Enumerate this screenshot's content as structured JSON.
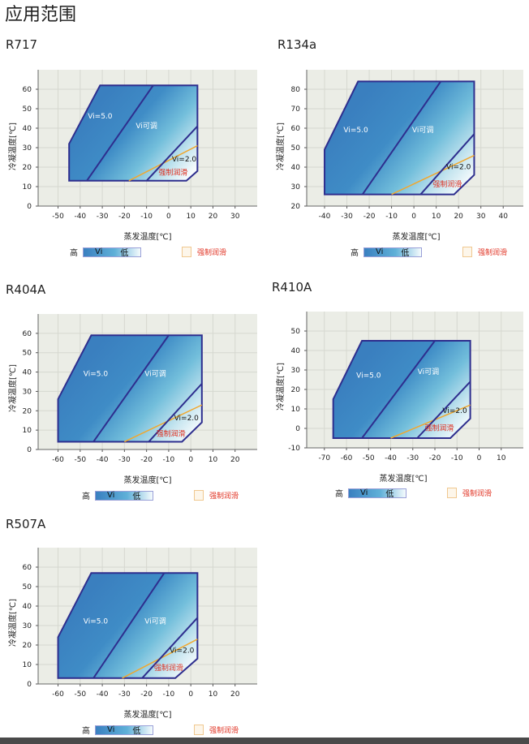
{
  "page_title": "应用范围",
  "legend": {
    "high": "高",
    "vi": "Vi",
    "low": "低",
    "lubrication": "强制润滑"
  },
  "colors": {
    "envelope_outline": "#2e2e8e",
    "gradient_dark": "#3a80c0",
    "gradient_light": "#f5fbfd",
    "lubrication_line": "#f0a830",
    "lubrication_text": "#e03020",
    "plot_background": "#ebede6"
  },
  "chart_data": [
    {
      "type": "area",
      "title": "R717",
      "xlabel": "蒸发温度[℃]",
      "ylabel": "冷凝温度[℃]",
      "xlim": [
        -59,
        40
      ],
      "ylim": [
        0,
        70
      ],
      "grid": true,
      "xticks": [
        -50,
        -40,
        -30,
        -20,
        -10,
        0,
        10,
        20,
        30
      ],
      "yticks": [
        0,
        10,
        20,
        30,
        40,
        50,
        60
      ],
      "envelope": [
        [
          -45,
          13
        ],
        [
          -45,
          32
        ],
        [
          -31,
          62
        ],
        [
          13,
          62
        ],
        [
          13,
          18
        ],
        [
          8,
          13
        ]
      ],
      "vi5_boundary": [
        [
          -37,
          13
        ],
        [
          -7,
          62
        ]
      ],
      "vi2_boundary": [
        [
          -10,
          13
        ],
        [
          13,
          41
        ]
      ],
      "lubrication_line": [
        [
          -18,
          13
        ],
        [
          13,
          31
        ]
      ],
      "region_labels": [
        "Vi=5.0",
        "Vi可调",
        "Vi=2.0",
        "强制润滑"
      ]
    },
    {
      "type": "area",
      "title": "R134a",
      "xlabel": "蒸发温度[℃]",
      "ylabel": "冷凝温度[℃]",
      "xlim": [
        -48,
        49
      ],
      "ylim": [
        20,
        90
      ],
      "grid": true,
      "xticks": [
        -40,
        -30,
        -20,
        -10,
        0,
        10,
        20,
        30,
        40
      ],
      "yticks": [
        20,
        30,
        40,
        50,
        60,
        70,
        80
      ],
      "envelope": [
        [
          -40,
          26
        ],
        [
          -40,
          49
        ],
        [
          -25,
          84
        ],
        [
          27,
          84
        ],
        [
          27,
          36
        ],
        [
          18,
          26
        ]
      ],
      "vi5_boundary": [
        [
          -23,
          26
        ],
        [
          12,
          84
        ]
      ],
      "vi2_boundary": [
        [
          3,
          26
        ],
        [
          27,
          57
        ]
      ],
      "lubrication_line": [
        [
          -10,
          26
        ],
        [
          27,
          46
        ]
      ],
      "region_labels": [
        "Vi=5.0",
        "Vi可调",
        "Vi=2.0",
        "强制润滑"
      ]
    },
    {
      "type": "area",
      "title": "R404A",
      "xlabel": "蒸发温度[℃]",
      "ylabel": "冷凝温度[℃]",
      "xlim": [
        -69,
        30
      ],
      "ylim": [
        0,
        70
      ],
      "grid": true,
      "xticks": [
        -60,
        -50,
        -40,
        -30,
        -20,
        -10,
        0,
        10,
        20
      ],
      "yticks": [
        0,
        10,
        20,
        30,
        40,
        50,
        60
      ],
      "envelope": [
        [
          -60,
          4
        ],
        [
          -60,
          26
        ],
        [
          -45,
          59
        ],
        [
          5,
          59
        ],
        [
          5,
          14
        ],
        [
          -4,
          4
        ]
      ],
      "vi5_boundary": [
        [
          -44,
          4
        ],
        [
          -10,
          59
        ]
      ],
      "vi2_boundary": [
        [
          -19,
          4
        ],
        [
          5,
          34
        ]
      ],
      "lubrication_line": [
        [
          -30,
          4
        ],
        [
          5,
          23
        ]
      ],
      "region_labels": [
        "Vi=5.0",
        "Vi可调",
        "Vi=2.0",
        "强制润滑"
      ]
    },
    {
      "type": "area",
      "title": "R410A",
      "xlabel": "蒸发温度[℃]",
      "ylabel": "冷凝温度[℃]",
      "xlim": [
        -78,
        20
      ],
      "ylim": [
        -10,
        60
      ],
      "grid": true,
      "xticks": [
        -70,
        -60,
        -50,
        -40,
        -30,
        -20,
        -10,
        0,
        10
      ],
      "yticks": [
        -10,
        0,
        10,
        20,
        30,
        40,
        50
      ],
      "envelope": [
        [
          -66,
          -5
        ],
        [
          -66,
          15
        ],
        [
          -53,
          45
        ],
        [
          -4,
          45
        ],
        [
          -4,
          5
        ],
        [
          -13,
          -5
        ]
      ],
      "vi5_boundary": [
        [
          -53,
          -5
        ],
        [
          -20,
          45
        ]
      ],
      "vi2_boundary": [
        [
          -28,
          -5
        ],
        [
          -4,
          24
        ]
      ],
      "lubrication_line": [
        [
          -40,
          -5
        ],
        [
          -4,
          12
        ]
      ],
      "region_labels": [
        "Vi=5.0",
        "Vi可调",
        "Vi=2.0",
        "强制润滑"
      ]
    },
    {
      "type": "area",
      "title": "R507A",
      "xlabel": "蒸发温度[℃]",
      "ylabel": "冷凝温度[℃]",
      "xlim": [
        -69,
        30
      ],
      "ylim": [
        0,
        70
      ],
      "grid": true,
      "xticks": [
        -60,
        -50,
        -40,
        -30,
        -20,
        -10,
        0,
        10,
        20
      ],
      "yticks": [
        0,
        10,
        20,
        30,
        40,
        50,
        60
      ],
      "envelope": [
        [
          -60,
          3
        ],
        [
          -60,
          24
        ],
        [
          -45,
          57
        ],
        [
          3,
          57
        ],
        [
          3,
          13
        ],
        [
          -7,
          3
        ]
      ],
      "vi5_boundary": [
        [
          -44,
          3
        ],
        [
          -12,
          57
        ]
      ],
      "vi2_boundary": [
        [
          -22,
          3
        ],
        [
          3,
          34
        ]
      ],
      "lubrication_line": [
        [
          -31,
          3
        ],
        [
          3,
          23
        ]
      ],
      "region_labels": [
        "Vi=5.0",
        "Vi可调",
        "Vi=2.0",
        "强制润滑"
      ]
    }
  ]
}
